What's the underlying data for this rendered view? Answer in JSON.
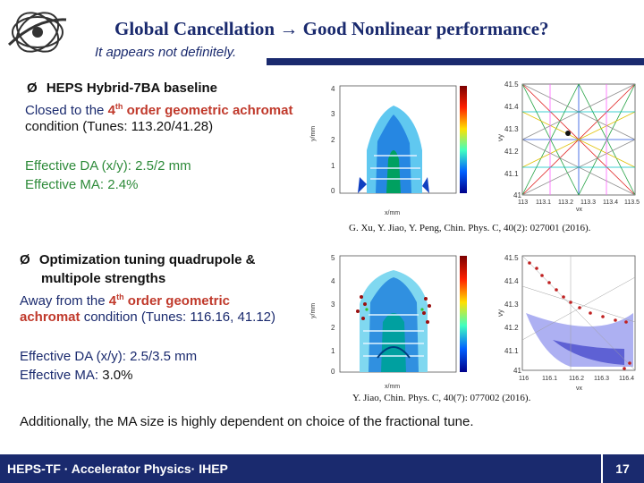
{
  "header": {
    "title_part1": "Global Cancellation",
    "title_arrow": "→",
    "title_part2": "Good Nonlinear performance?",
    "subtitle": "It appears not definitely."
  },
  "section1": {
    "bullet": "Ø",
    "heading": "HEPS Hybrid-7BA baseline",
    "line1_a": "Closed to the ",
    "line1_b": "4",
    "line1_sup": "th",
    "line1_c": " order geometric achromat",
    "line2": "condition (Tunes: 113.20/41.28)",
    "da": "Effective DA (x/y): 2.5/2 mm",
    "ma": "Effective MA: 2.4%",
    "reference": "G. Xu, Y. Jiao, Y. Peng, Chin. Phys. C, 40(2): 027001 (2016).",
    "da_plot": {
      "ylabel": "y/mm",
      "xlabel": "x/mm",
      "yticks": [
        "4",
        "3",
        "2",
        "1",
        "0"
      ],
      "cbar_ticks": [
        "-2",
        "-4",
        "-6",
        "-8",
        "-10"
      ]
    },
    "tune_plot": {
      "ylabel": "νy",
      "xlabel": "νx",
      "yticks": [
        "41.5",
        "41.4",
        "41.3",
        "41.2",
        "41.1",
        "41"
      ],
      "xticks": [
        "113",
        "113.1",
        "113.2",
        "113.3",
        "113.4",
        "113.5"
      ]
    }
  },
  "section2": {
    "bullet": "Ø",
    "heading1": "Optimization tuning quadrupole &",
    "heading2": "multipole strengths",
    "line1_a": "Away from the ",
    "line1_b": "4",
    "line1_sup": "th",
    "line1_c": " order geometric",
    "line2_a": "achromat",
    "line2_b": " condition (Tunes: 116.16, 41.12)",
    "da": "Effective DA (x/y): 2.5/3.5 mm",
    "ma_a": "Effective MA: ",
    "ma_b": "3.0%",
    "reference": "Y. Jiao, Chin. Phys. C, 40(7): 077002 (2016).",
    "da_plot": {
      "ylabel": "y/mm",
      "xlabel": "x/mm",
      "yticks": [
        "5",
        "4",
        "3",
        "2",
        "1",
        "0"
      ],
      "cbar_ticks": [
        "-2",
        "-4",
        "-6",
        "-8",
        "-10"
      ]
    },
    "tune_plot": {
      "ylabel": "νy",
      "xlabel": "νx",
      "yticks": [
        "41.5",
        "41.4",
        "41.3",
        "41.2",
        "41.1",
        "41"
      ],
      "xticks": [
        "116",
        "116.1",
        "116.2",
        "116.3",
        "116.4"
      ]
    }
  },
  "conclusion": "Additionally, the MA size is highly dependent on choice of the fractional tune.",
  "footer": {
    "text": "HEPS-TF · Accelerator Physics· IHEP",
    "page": "17"
  },
  "colors": {
    "navy": "#1a2a6e",
    "green": "#2e8b3a",
    "red": "#c0392b"
  }
}
